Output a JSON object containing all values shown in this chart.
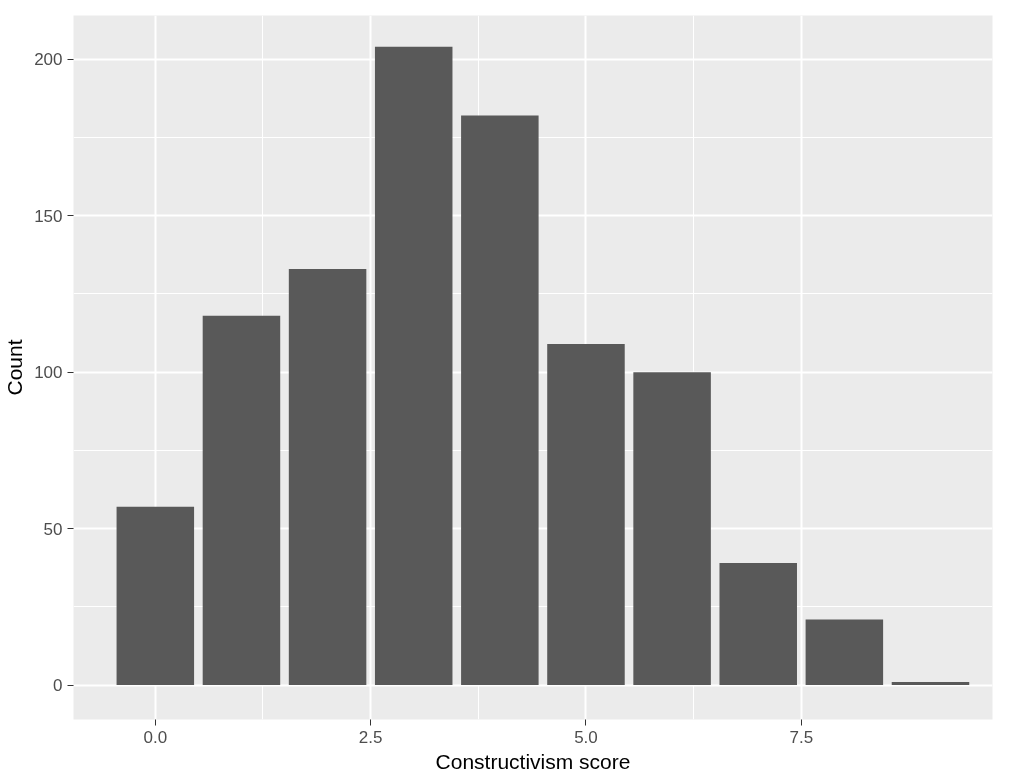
{
  "chart_data": {
    "type": "bar",
    "xlabel": "Constructivism score",
    "ylabel": "Count",
    "x": [
      0,
      1,
      2,
      3,
      4,
      5,
      6,
      7,
      8,
      9
    ],
    "values": [
      57,
      118,
      133,
      204,
      182,
      109,
      100,
      39,
      21,
      1
    ],
    "color": "#595959",
    "xlim": [
      -0.95,
      9.72
    ],
    "ylim": [
      -11,
      214
    ],
    "xticks": [
      {
        "value": 0,
        "label": "0.0"
      },
      {
        "value": 2.5,
        "label": "2.5"
      },
      {
        "value": 5,
        "label": "5.0"
      },
      {
        "value": 7.5,
        "label": "7.5"
      }
    ],
    "yticks": [
      0,
      50,
      100,
      150,
      200
    ],
    "grid": true
  }
}
